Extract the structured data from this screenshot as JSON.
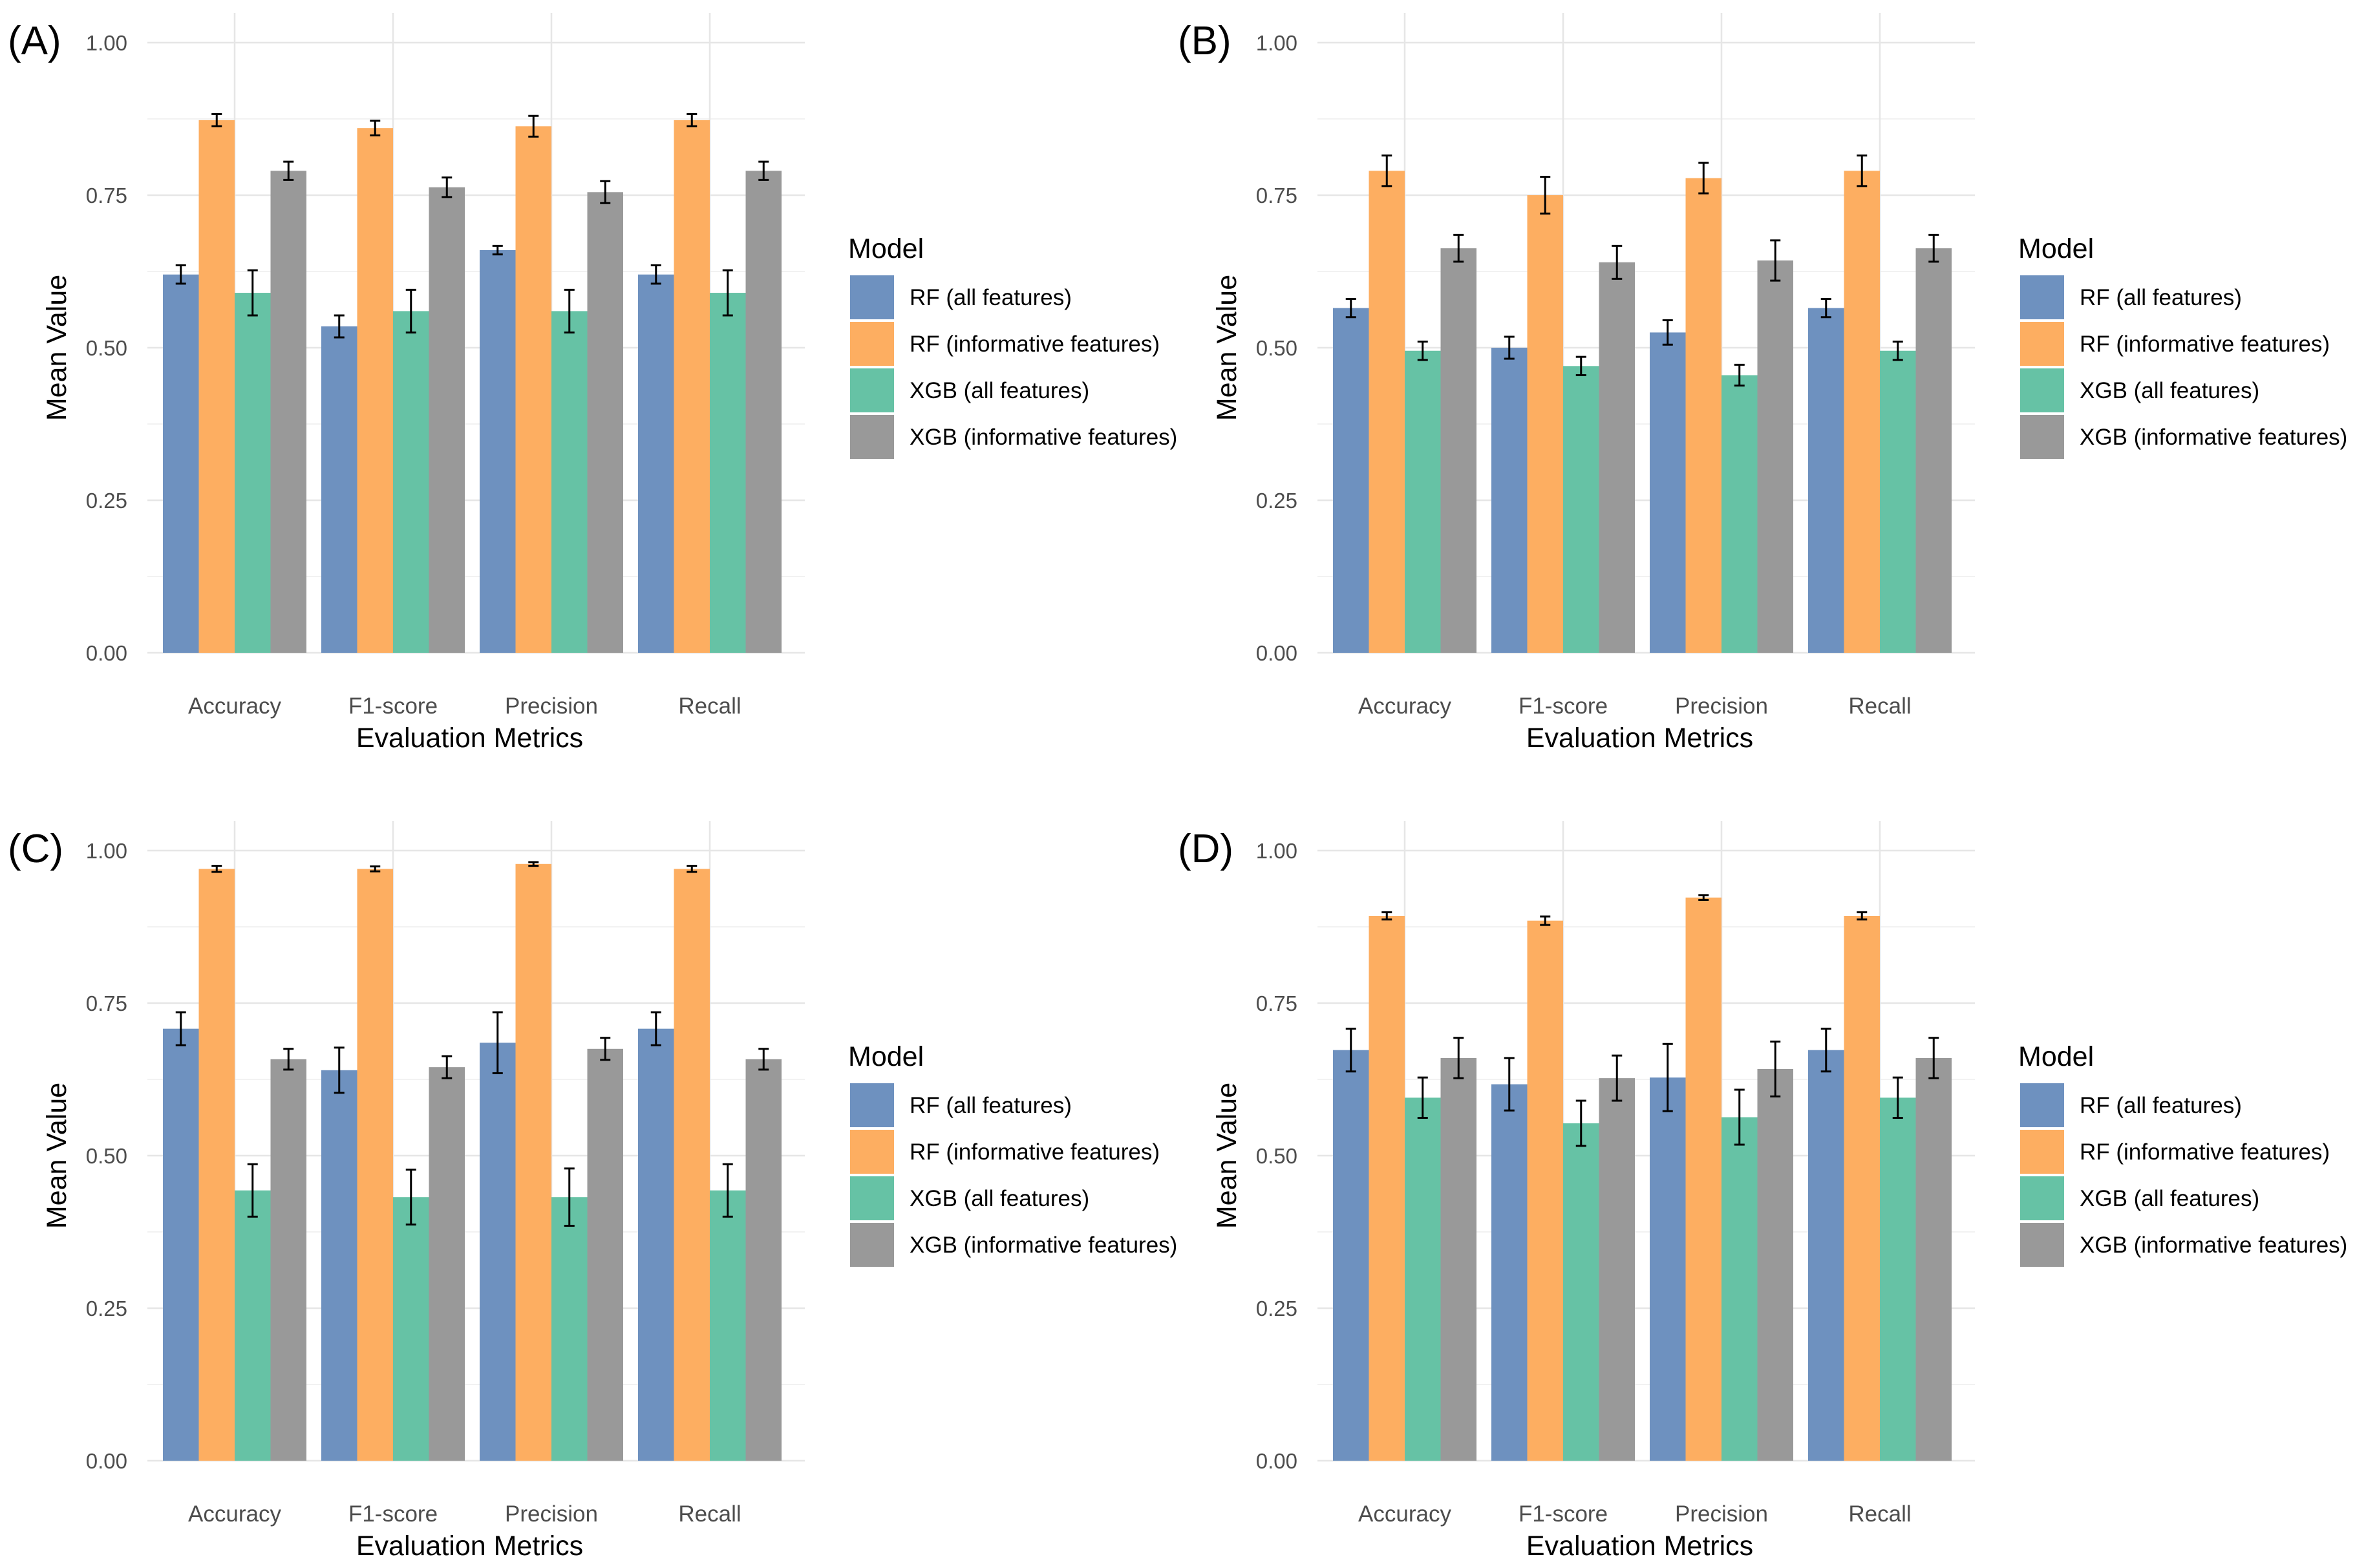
{
  "figure": {
    "background": "#ffffff"
  },
  "legend_title": "Model",
  "colors": {
    "series": [
      "#6E91BF",
      "#FDAE61",
      "#66C2A5",
      "#999999"
    ],
    "grid_major": "#e6e6e6",
    "grid_minor": "#f2f2f2",
    "text": "#4d4d4d",
    "title": "#000000",
    "errorbar": "#000000"
  },
  "chart_data": [
    {
      "panel_label": "(A)",
      "type": "bar",
      "xlabel": "Evaluation Metrics",
      "ylabel": "Mean Value",
      "ylim": [
        0,
        1
      ],
      "yticks": [
        0.0,
        0.25,
        0.5,
        0.75,
        1.0
      ],
      "ytick_labels": [
        "0.00",
        "0.25",
        "0.50",
        "0.75",
        "1.00"
      ],
      "grid": true,
      "legend_position": "right",
      "categories": [
        "Accuracy",
        "F1-score",
        "Precision",
        "Recall"
      ],
      "series": [
        {
          "name": "RF (all features)",
          "values": [
            0.62,
            0.535,
            0.66,
            0.62
          ],
          "errors": [
            0.015,
            0.018,
            0.007,
            0.015
          ]
        },
        {
          "name": "RF (informative features)",
          "values": [
            0.873,
            0.86,
            0.863,
            0.873
          ],
          "errors": [
            0.01,
            0.012,
            0.017,
            0.01
          ]
        },
        {
          "name": "XGB (all features)",
          "values": [
            0.59,
            0.56,
            0.56,
            0.59
          ],
          "errors": [
            0.037,
            0.035,
            0.035,
            0.037
          ]
        },
        {
          "name": "XGB (informative features)",
          "values": [
            0.79,
            0.763,
            0.755,
            0.79
          ],
          "errors": [
            0.015,
            0.016,
            0.018,
            0.015
          ]
        }
      ]
    },
    {
      "panel_label": "(B)",
      "type": "bar",
      "xlabel": "Evaluation Metrics",
      "ylabel": "Mean Value",
      "ylim": [
        0,
        1
      ],
      "yticks": [
        0.0,
        0.25,
        0.5,
        0.75,
        1.0
      ],
      "ytick_labels": [
        "0.00",
        "0.25",
        "0.50",
        "0.75",
        "1.00"
      ],
      "grid": true,
      "legend_position": "right",
      "categories": [
        "Accuracy",
        "F1-score",
        "Precision",
        "Recall"
      ],
      "series": [
        {
          "name": "RF (all features)",
          "values": [
            0.565,
            0.5,
            0.525,
            0.565
          ],
          "errors": [
            0.015,
            0.018,
            0.02,
            0.015
          ]
        },
        {
          "name": "RF (informative features)",
          "values": [
            0.79,
            0.75,
            0.778,
            0.79
          ],
          "errors": [
            0.025,
            0.03,
            0.025,
            0.025
          ]
        },
        {
          "name": "XGB (all features)",
          "values": [
            0.495,
            0.47,
            0.455,
            0.495
          ],
          "errors": [
            0.015,
            0.015,
            0.017,
            0.015
          ]
        },
        {
          "name": "XGB (informative features)",
          "values": [
            0.663,
            0.64,
            0.643,
            0.663
          ],
          "errors": [
            0.022,
            0.027,
            0.033,
            0.022
          ]
        }
      ]
    },
    {
      "panel_label": "(C)",
      "type": "bar",
      "xlabel": "Evaluation Metrics",
      "ylabel": "Mean Value",
      "ylim": [
        0,
        1
      ],
      "yticks": [
        0.0,
        0.25,
        0.5,
        0.75,
        1.0
      ],
      "ytick_labels": [
        "0.00",
        "0.25",
        "0.50",
        "0.75",
        "1.00"
      ],
      "grid": true,
      "legend_position": "right",
      "categories": [
        "Accuracy",
        "F1-score",
        "Precision",
        "Recall"
      ],
      "series": [
        {
          "name": "RF (all features)",
          "values": [
            0.708,
            0.64,
            0.685,
            0.708
          ],
          "errors": [
            0.027,
            0.037,
            0.05,
            0.027
          ]
        },
        {
          "name": "RF (informative features)",
          "values": [
            0.97,
            0.97,
            0.978,
            0.97
          ],
          "errors": [
            0.005,
            0.004,
            0.003,
            0.005
          ]
        },
        {
          "name": "XGB (all features)",
          "values": [
            0.443,
            0.432,
            0.432,
            0.443
          ],
          "errors": [
            0.043,
            0.045,
            0.047,
            0.043
          ]
        },
        {
          "name": "XGB (informative features)",
          "values": [
            0.658,
            0.645,
            0.675,
            0.658
          ],
          "errors": [
            0.017,
            0.018,
            0.018,
            0.017
          ]
        }
      ]
    },
    {
      "panel_label": "(D)",
      "type": "bar",
      "xlabel": "Evaluation Metrics",
      "ylabel": "Mean Value",
      "ylim": [
        0,
        1
      ],
      "yticks": [
        0.0,
        0.25,
        0.5,
        0.75,
        1.0
      ],
      "ytick_labels": [
        "0.00",
        "0.25",
        "0.50",
        "0.75",
        "1.00"
      ],
      "grid": true,
      "legend_position": "right",
      "categories": [
        "Accuracy",
        "F1-score",
        "Precision",
        "Recall"
      ],
      "series": [
        {
          "name": "RF (all features)",
          "values": [
            0.673,
            0.617,
            0.628,
            0.673
          ],
          "errors": [
            0.035,
            0.043,
            0.055,
            0.035
          ]
        },
        {
          "name": "RF (informative features)",
          "values": [
            0.893,
            0.885,
            0.923,
            0.893
          ],
          "errors": [
            0.006,
            0.007,
            0.004,
            0.006
          ]
        },
        {
          "name": "XGB (all features)",
          "values": [
            0.595,
            0.553,
            0.563,
            0.595
          ],
          "errors": [
            0.033,
            0.037,
            0.045,
            0.033
          ]
        },
        {
          "name": "XGB (informative features)",
          "values": [
            0.66,
            0.627,
            0.642,
            0.66
          ],
          "errors": [
            0.033,
            0.037,
            0.045,
            0.033
          ]
        }
      ]
    }
  ]
}
